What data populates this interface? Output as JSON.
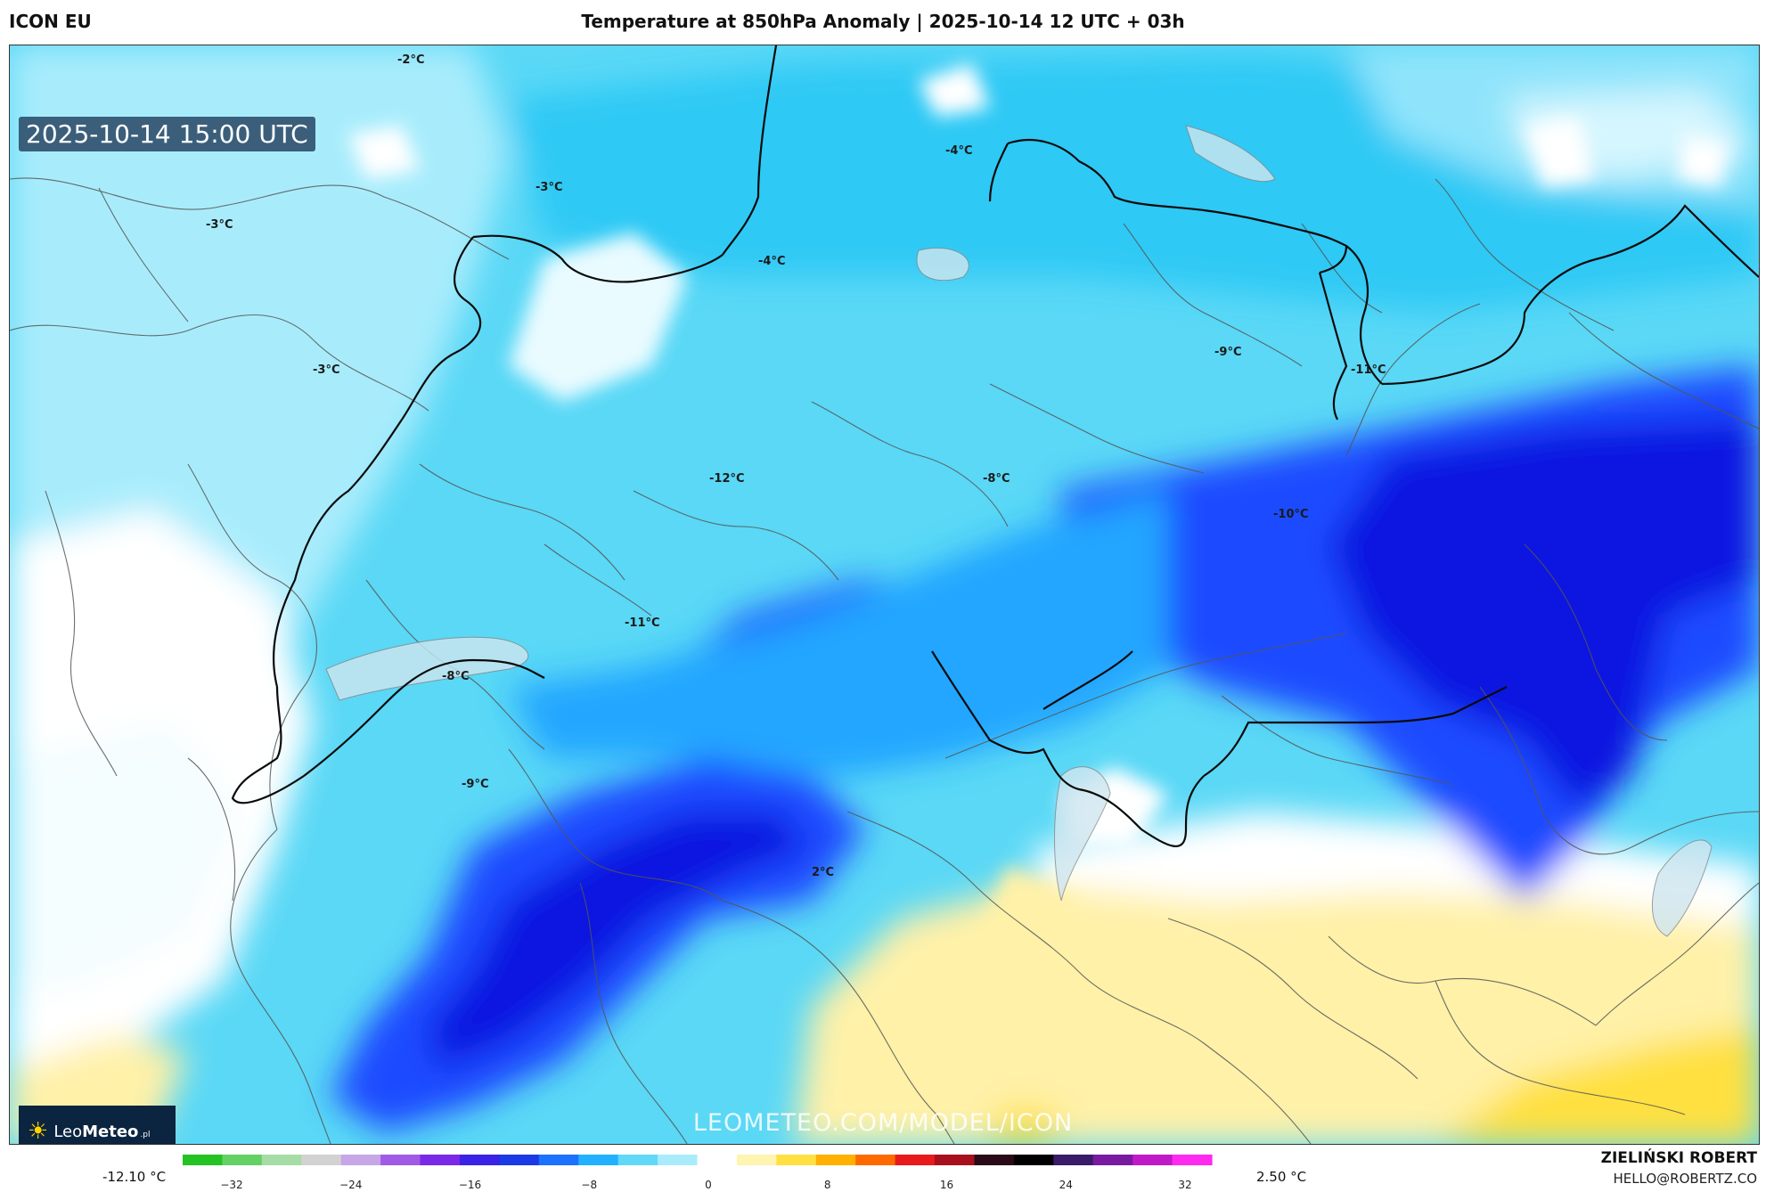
{
  "header": {
    "model": "ICON EU",
    "title": "Temperature at 850hPa Anomaly | 2025-10-14 12 UTC + 03h"
  },
  "map": {
    "timestamp": "2025-10-14 15:00 UTC",
    "watermark": "LEOMETEO.COM/MODEL/ICON",
    "logo": {
      "light": "Leo",
      "bold": "Meteo",
      "suffix": ".pl",
      "icon": "sun-icon"
    },
    "contour_labels": [
      {
        "text": "-2°C"
      },
      {
        "text": "-3°C"
      },
      {
        "text": "-3°C"
      },
      {
        "text": "-3°C"
      },
      {
        "text": "-4°C"
      },
      {
        "text": "-4°C"
      },
      {
        "text": "-12°C"
      },
      {
        "text": "-8°C"
      },
      {
        "text": "-9°C"
      },
      {
        "text": "-11°C"
      },
      {
        "text": "-10°C"
      },
      {
        "text": "-11°C"
      },
      {
        "text": "-8°C"
      },
      {
        "text": "-9°C"
      },
      {
        "text": "2°C"
      }
    ]
  },
  "legend": {
    "min_label": "-12.10 °C",
    "max_label": "2.50 °C",
    "ticks": [
      "−32",
      "−24",
      "−16",
      "−8",
      "0",
      "8",
      "16",
      "24",
      "32"
    ],
    "colors": [
      "#22c322",
      "#63d163",
      "#a6dca6",
      "#d2d2d2",
      "#c6a6e6",
      "#a05ae6",
      "#7a2ae6",
      "#3a22e6",
      "#1a3ae6",
      "#1a72ff",
      "#21b1ff",
      "#61d8f8",
      "#a8ecfc",
      "#ffffff",
      "#fff4b0",
      "#ffe040",
      "#ffb000",
      "#ff6a00",
      "#e81a1a",
      "#a8101e",
      "#2a0a18",
      "#000000",
      "#3a1a6a",
      "#7a1aa0",
      "#c01ac8",
      "#ff2af0"
    ]
  },
  "credits": {
    "author": "ZIELIŃSKI ROBERT",
    "email": "HELLO@ROBERTZ.CO"
  }
}
